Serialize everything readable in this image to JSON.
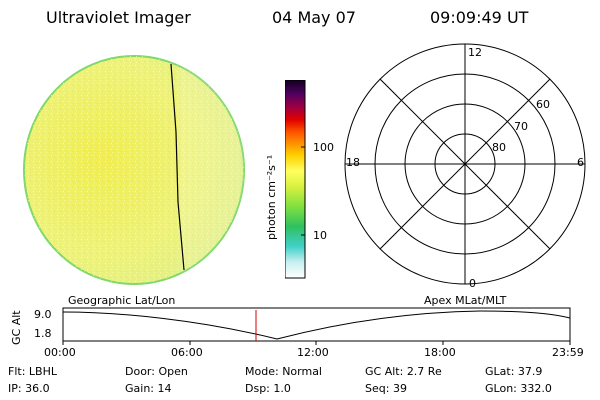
{
  "header": {
    "instrument": "Ultraviolet Imager",
    "date": "04 May 07",
    "time": "09:09:49 UT"
  },
  "colorbar": {
    "unit_label": "photon cm⁻²s⁻¹",
    "ticks": [
      "100",
      "10"
    ]
  },
  "polar_plot": {
    "mlt_labels": {
      "top": "12",
      "left": "18",
      "right": "6",
      "bottom": "0"
    },
    "lat_labels": [
      "60",
      "70",
      "80"
    ]
  },
  "timeline": {
    "left_title": "Geographic Lat/Lon",
    "right_title": "Apex MLat/MLT",
    "y_axis_label": "GC Alt",
    "y_ticks": [
      "9.0",
      "1.8"
    ],
    "x_ticks": [
      "00:00",
      "06:00",
      "12:00",
      "18:00",
      "23:59"
    ],
    "marker_time": "09:09:49"
  },
  "status": {
    "flt": {
      "label": "Flt:",
      "value": "LBHL"
    },
    "ip": {
      "label": "IP:",
      "value": "36.0"
    },
    "door": {
      "label": "Door:",
      "value": "Open"
    },
    "gain": {
      "label": "Gain:",
      "value": "14"
    },
    "mode": {
      "label": "Mode:",
      "value": "Normal"
    },
    "dsp": {
      "label": "Dsp:",
      "value": "1.0"
    },
    "gcalt": {
      "label": "GC Alt:",
      "value": "2.7 Re"
    },
    "seq": {
      "label": "Seq:",
      "value": "39"
    },
    "glat": {
      "label": "GLat:",
      "value": "37.9"
    },
    "glon": {
      "label": "GLon:",
      "value": "332.0"
    }
  },
  "colors": {
    "disk_fill": "#f2f24a",
    "disk_edge": "#7ed86a",
    "marker": "#d00000",
    "colorbar": [
      "#ffffff",
      "#c8f0f0",
      "#40d0c8",
      "#30c060",
      "#80e040",
      "#d8f040",
      "#ffff60",
      "#ffd000",
      "#ff9000",
      "#ff5000",
      "#e00000",
      "#a00040",
      "#500060",
      "#100020"
    ]
  }
}
